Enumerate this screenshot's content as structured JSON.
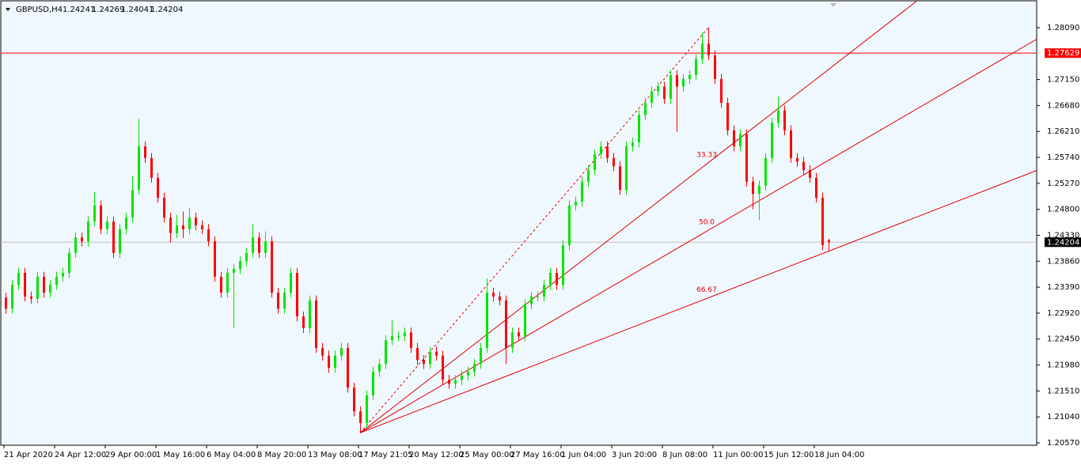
{
  "chart_data": {
    "type": "candlestick",
    "symbol": "GBPUSD,H4",
    "info": {
      "open": 1.24241,
      "high": 1.24269,
      "low": 1.24041,
      "close": 1.24204
    },
    "bull_color": "#00e600",
    "bear_color": "#ff0000",
    "ylim": [
      1.20527,
      1.28591
    ],
    "yticks": [
      {
        "value": 1.2809,
        "label": "1.28090"
      },
      {
        "value": 1.2715,
        "label": "1.27150"
      },
      {
        "value": 1.2668,
        "label": "1.26680"
      },
      {
        "value": 1.2621,
        "label": "1.26210"
      },
      {
        "value": 1.2574,
        "label": "1.25740"
      },
      {
        "value": 1.2527,
        "label": "1.25270"
      },
      {
        "value": 1.248,
        "label": "1.24800"
      },
      {
        "value": 1.2433,
        "label": "1.24330"
      },
      {
        "value": 1.2386,
        "label": "1.23860"
      },
      {
        "value": 1.2339,
        "label": "1.23390"
      },
      {
        "value": 1.2292,
        "label": "1.22920"
      },
      {
        "value": 1.2245,
        "label": "1.22450"
      },
      {
        "value": 1.2198,
        "label": "1.21980"
      },
      {
        "value": 1.2151,
        "label": "1.21510"
      },
      {
        "value": 1.2104,
        "label": "1.21040"
      },
      {
        "value": 1.2057,
        "label": "1.20570"
      }
    ],
    "hline": {
      "value": 1.27629,
      "color": "#ff0000"
    },
    "fan": {
      "start": [
        56,
        1.2075
      ],
      "end": [
        111,
        1.2809
      ],
      "color": "#e00000",
      "levels": [
        {
          "value": 33.33,
          "label": "33.33"
        },
        {
          "value": 50,
          "label": "50.0"
        },
        {
          "value": 66.67,
          "label": "66.67"
        }
      ]
    },
    "categories": [
      "21 Apr 2020",
      null,
      null,
      null,
      null,
      null,
      null,
      null,
      "24 Apr 12:00",
      null,
      null,
      null,
      null,
      null,
      null,
      null,
      "29 Apr 00:00",
      null,
      null,
      null,
      null,
      null,
      null,
      null,
      "1 May 16:00",
      null,
      null,
      null,
      null,
      null,
      null,
      null,
      "6 May 04:00",
      null,
      null,
      null,
      null,
      null,
      null,
      null,
      "8 May 20:00",
      null,
      null,
      null,
      null,
      null,
      null,
      null,
      "13 May 08:00",
      null,
      null,
      null,
      null,
      null,
      null,
      null,
      "17 May 21:05",
      null,
      null,
      null,
      null,
      null,
      null,
      null,
      "20 May 12:00",
      null,
      null,
      null,
      null,
      null,
      null,
      null,
      "25 May 00:00",
      null,
      null,
      null,
      null,
      null,
      null,
      null,
      "27 May 16:00",
      null,
      null,
      null,
      null,
      null,
      null,
      null,
      "1 Jun 04:00",
      null,
      null,
      null,
      null,
      null,
      null,
      null,
      "3 Jun 20:00",
      null,
      null,
      null,
      null,
      null,
      null,
      null,
      "8 Jun 08:00",
      null,
      null,
      null,
      null,
      null,
      null,
      null,
      "11 Jun 00:00",
      null,
      null,
      null,
      null,
      null,
      null,
      null,
      "15 Jun 12:00",
      null,
      null,
      null,
      null,
      null,
      null,
      null,
      "18 Jun 04:00",
      null,
      null
    ],
    "candles": [
      [
        1.232,
        1.2329,
        1.2291,
        1.23
      ],
      [
        1.23,
        1.2352,
        1.2291,
        1.2343
      ],
      [
        1.2343,
        1.2374,
        1.2334,
        1.2365
      ],
      [
        1.2365,
        1.2374,
        1.2313,
        1.2322
      ],
      [
        1.2322,
        1.2331,
        1.2309,
        1.2318
      ],
      [
        1.2318,
        1.2367,
        1.2309,
        1.2358
      ],
      [
        1.2358,
        1.2367,
        1.232,
        1.2329
      ],
      [
        1.2329,
        1.2352,
        1.232,
        1.2343
      ],
      [
        1.2343,
        1.2367,
        1.2334,
        1.2358
      ],
      [
        1.2358,
        1.2374,
        1.2349,
        1.2365
      ],
      [
        1.2365,
        1.241,
        1.2356,
        1.2401
      ],
      [
        1.2401,
        1.2438,
        1.2392,
        1.2429
      ],
      [
        1.2429,
        1.2438,
        1.2413,
        1.2422
      ],
      [
        1.2422,
        1.2467,
        1.2413,
        1.2458
      ],
      [
        1.2458,
        1.2512,
        1.2449,
        1.2487
      ],
      [
        1.2487,
        1.2496,
        1.2435,
        1.2444
      ],
      [
        1.2444,
        1.2467,
        1.2435,
        1.2458
      ],
      [
        1.2458,
        1.2467,
        1.2392,
        1.2401
      ],
      [
        1.2401,
        1.2453,
        1.2392,
        1.2444
      ],
      [
        1.2444,
        1.2474,
        1.2435,
        1.2465
      ],
      [
        1.2465,
        1.254,
        1.2456,
        1.2515
      ],
      [
        1.2515,
        1.2644,
        1.2506,
        1.2594
      ],
      [
        1.2594,
        1.2603,
        1.2564,
        1.2573
      ],
      [
        1.2573,
        1.2582,
        1.2528,
        1.2537
      ],
      [
        1.2537,
        1.2546,
        1.2492,
        1.2501
      ],
      [
        1.2501,
        1.251,
        1.2456,
        1.2465
      ],
      [
        1.2465,
        1.2474,
        1.242,
        1.2437
      ],
      [
        1.2437,
        1.247,
        1.2428,
        1.2451
      ],
      [
        1.2451,
        1.2476,
        1.2428,
        1.2444
      ],
      [
        1.2444,
        1.2482,
        1.2435,
        1.2465
      ],
      [
        1.2465,
        1.2474,
        1.2442,
        1.2451
      ],
      [
        1.2451,
        1.246,
        1.2435,
        1.2444
      ],
      [
        1.2444,
        1.2453,
        1.2413,
        1.2422
      ],
      [
        1.2422,
        1.2431,
        1.2349,
        1.2358
      ],
      [
        1.2358,
        1.2367,
        1.232,
        1.2329
      ],
      [
        1.2329,
        1.2374,
        1.232,
        1.2365
      ],
      [
        1.2365,
        1.2381,
        1.2265,
        1.2372
      ],
      [
        1.2372,
        1.2395,
        1.2363,
        1.2386
      ],
      [
        1.2386,
        1.241,
        1.2377,
        1.2401
      ],
      [
        1.2401,
        1.2453,
        1.2392,
        1.2429
      ],
      [
        1.2429,
        1.2438,
        1.2392,
        1.2401
      ],
      [
        1.2401,
        1.244,
        1.2392,
        1.2422
      ],
      [
        1.2422,
        1.2431,
        1.232,
        1.2329
      ],
      [
        1.2329,
        1.2338,
        1.2291,
        1.23
      ],
      [
        1.23,
        1.2338,
        1.2291,
        1.2329
      ],
      [
        1.2329,
        1.2374,
        1.232,
        1.2365
      ],
      [
        1.2365,
        1.2374,
        1.2277,
        1.2286
      ],
      [
        1.2286,
        1.2295,
        1.2256,
        1.2265
      ],
      [
        1.2265,
        1.2324,
        1.2256,
        1.2315
      ],
      [
        1.2315,
        1.2324,
        1.222,
        1.2229
      ],
      [
        1.2229,
        1.2238,
        1.2206,
        1.2215
      ],
      [
        1.2215,
        1.2224,
        1.2184,
        1.2193
      ],
      [
        1.2193,
        1.2224,
        1.2184,
        1.2215
      ],
      [
        1.2215,
        1.2238,
        1.2206,
        1.2229
      ],
      [
        1.2229,
        1.2238,
        1.2148,
        1.2157
      ],
      [
        1.2157,
        1.2166,
        1.2105,
        1.2114
      ],
      [
        1.2114,
        1.2123,
        1.2075,
        1.2093
      ],
      [
        1.2093,
        1.2152,
        1.2084,
        1.2143
      ],
      [
        1.2143,
        1.2195,
        1.2134,
        1.2186
      ],
      [
        1.2186,
        1.2209,
        1.2177,
        1.22
      ],
      [
        1.22,
        1.2252,
        1.2191,
        1.2243
      ],
      [
        1.2243,
        1.228,
        1.2234,
        1.225
      ],
      [
        1.225,
        1.2259,
        1.2241,
        1.225
      ],
      [
        1.225,
        1.2266,
        1.2241,
        1.2257
      ],
      [
        1.2257,
        1.2266,
        1.222,
        1.2229
      ],
      [
        1.2229,
        1.2238,
        1.2198,
        1.2207
      ],
      [
        1.2207,
        1.2216,
        1.2191,
        1.22
      ],
      [
        1.22,
        1.2231,
        1.2191,
        1.2222
      ],
      [
        1.2222,
        1.2231,
        1.2206,
        1.2215
      ],
      [
        1.2215,
        1.2224,
        1.2162,
        1.2171
      ],
      [
        1.2171,
        1.218,
        1.2155,
        1.2164
      ],
      [
        1.2164,
        1.218,
        1.2155,
        1.2171
      ],
      [
        1.2171,
        1.2188,
        1.2162,
        1.2179
      ],
      [
        1.2179,
        1.2195,
        1.217,
        1.2186
      ],
      [
        1.2186,
        1.2209,
        1.2177,
        1.22
      ],
      [
        1.22,
        1.2238,
        1.2191,
        1.2229
      ],
      [
        1.2229,
        1.2355,
        1.222,
        1.2329
      ],
      [
        1.2329,
        1.2338,
        1.2313,
        1.2322
      ],
      [
        1.2322,
        1.2331,
        1.2306,
        1.2315
      ],
      [
        1.2315,
        1.2324,
        1.22,
        1.2229
      ],
      [
        1.2229,
        1.2266,
        1.222,
        1.2257
      ],
      [
        1.2257,
        1.2266,
        1.2241,
        1.225
      ],
      [
        1.225,
        1.2317,
        1.2241,
        1.2308
      ],
      [
        1.2308,
        1.2331,
        1.2299,
        1.2322
      ],
      [
        1.2322,
        1.2331,
        1.2313,
        1.2322
      ],
      [
        1.2322,
        1.2352,
        1.2313,
        1.2343
      ],
      [
        1.2343,
        1.2374,
        1.2334,
        1.2365
      ],
      [
        1.2365,
        1.2374,
        1.2334,
        1.2343
      ],
      [
        1.2343,
        1.2424,
        1.2334,
        1.2415
      ],
      [
        1.2415,
        1.2496,
        1.2406,
        1.2487
      ],
      [
        1.2487,
        1.2503,
        1.2478,
        1.2494
      ],
      [
        1.2494,
        1.2539,
        1.2485,
        1.253
      ],
      [
        1.253,
        1.256,
        1.2521,
        1.2551
      ],
      [
        1.2551,
        1.2589,
        1.2542,
        1.258
      ],
      [
        1.258,
        1.2603,
        1.2571,
        1.2594
      ],
      [
        1.2594,
        1.2603,
        1.2564,
        1.2573
      ],
      [
        1.2573,
        1.2582,
        1.2549,
        1.2558
      ],
      [
        1.2558,
        1.2567,
        1.2506,
        1.2515
      ],
      [
        1.2515,
        1.2603,
        1.2506,
        1.2594
      ],
      [
        1.2594,
        1.261,
        1.2585,
        1.2601
      ],
      [
        1.2601,
        1.266,
        1.2592,
        1.2651
      ],
      [
        1.2651,
        1.2682,
        1.2642,
        1.2673
      ],
      [
        1.2673,
        1.2703,
        1.2664,
        1.2694
      ],
      [
        1.2694,
        1.2711,
        1.2685,
        1.2702
      ],
      [
        1.2702,
        1.2711,
        1.2671,
        1.268
      ],
      [
        1.268,
        1.2732,
        1.2671,
        1.2723
      ],
      [
        1.2723,
        1.2732,
        1.262,
        1.2702
      ],
      [
        1.2702,
        1.2725,
        1.2693,
        1.2716
      ],
      [
        1.2716,
        1.2732,
        1.2707,
        1.2723
      ],
      [
        1.2723,
        1.2761,
        1.2714,
        1.2752
      ],
      [
        1.2752,
        1.28,
        1.2743,
        1.278
      ],
      [
        1.278,
        1.2809,
        1.275,
        1.2759
      ],
      [
        1.2759,
        1.2768,
        1.2707,
        1.2716
      ],
      [
        1.2716,
        1.2725,
        1.2664,
        1.2673
      ],
      [
        1.2673,
        1.2682,
        1.2614,
        1.2623
      ],
      [
        1.2623,
        1.2632,
        1.2585,
        1.2594
      ],
      [
        1.2594,
        1.2625,
        1.2585,
        1.2616
      ],
      [
        1.2616,
        1.2625,
        1.2521,
        1.253
      ],
      [
        1.253,
        1.2539,
        1.248,
        1.2508
      ],
      [
        1.2508,
        1.2532,
        1.246,
        1.2523
      ],
      [
        1.2523,
        1.2582,
        1.2514,
        1.2573
      ],
      [
        1.2573,
        1.2646,
        1.2564,
        1.2637
      ],
      [
        1.2637,
        1.2685,
        1.2628,
        1.2659
      ],
      [
        1.2659,
        1.2668,
        1.2614,
        1.2623
      ],
      [
        1.2623,
        1.2632,
        1.2564,
        1.2573
      ],
      [
        1.2573,
        1.2582,
        1.2557,
        1.2566
      ],
      [
        1.2566,
        1.2575,
        1.2542,
        1.2551
      ],
      [
        1.2551,
        1.256,
        1.2528,
        1.2537
      ],
      [
        1.2537,
        1.2546,
        1.2492,
        1.2501
      ],
      [
        1.2501,
        1.251,
        1.2406,
        1.2415
      ],
      [
        1.24241,
        1.24269,
        1.24041,
        1.24204
      ]
    ]
  }
}
